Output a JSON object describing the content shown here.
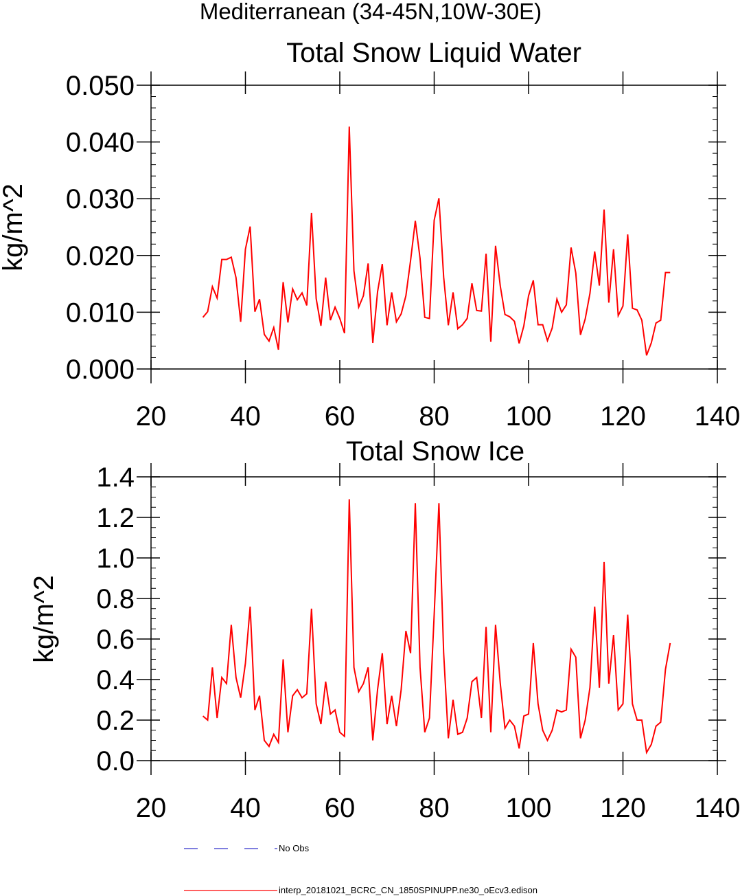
{
  "figure_title": "Mediterranean (34-45N,10W-30E)",
  "legend": [
    {
      "label": "No Obs",
      "color": "#3333cc",
      "dash": "dashed"
    },
    {
      "label": "interp_20181021_BCRC_CN_1850SPINUPP.ne30_oEcv3.edison",
      "color": "#ff0000",
      "dash": "solid"
    }
  ],
  "chart_data": [
    {
      "type": "line",
      "title": "Total Snow Liquid Water",
      "ylabel": "kg/m^2",
      "xlabel": "",
      "xlim": [
        20,
        140
      ],
      "ylim": [
        0,
        0.05
      ],
      "xticks": [
        20,
        40,
        60,
        80,
        100,
        120,
        140
      ],
      "xtick_labels": [
        "20",
        "40",
        "60",
        "80",
        "100",
        "120",
        "140"
      ],
      "yticks": [
        0,
        0.01,
        0.02,
        0.03,
        0.04,
        0.05
      ],
      "ytick_labels": [
        "0.000",
        "0.010",
        "0.020",
        "0.030",
        "0.040",
        "0.050"
      ],
      "y_minor_step": 0.002,
      "grid": false,
      "series": [
        {
          "color": "#ff0000",
          "x_start": 31,
          "x_step": 1,
          "values": [
            0.0091,
            0.0101,
            0.0145,
            0.0125,
            0.0193,
            0.0193,
            0.0197,
            0.0161,
            0.0083,
            0.0211,
            0.0251,
            0.0101,
            0.0123,
            0.0061,
            0.0049,
            0.0073,
            0.0034,
            0.0153,
            0.0082,
            0.0141,
            0.0122,
            0.0134,
            0.0112,
            0.0275,
            0.0124,
            0.0076,
            0.0161,
            0.0086,
            0.0109,
            0.0089,
            0.0063,
            0.0427,
            0.0173,
            0.0109,
            0.0129,
            0.0186,
            0.0046,
            0.0136,
            0.0185,
            0.0077,
            0.0135,
            0.0083,
            0.0097,
            0.0129,
            0.0191,
            0.0261,
            0.0195,
            0.0091,
            0.0089,
            0.0262,
            0.0301,
            0.0162,
            0.0077,
            0.0135,
            0.0071,
            0.0078,
            0.0089,
            0.0151,
            0.0103,
            0.0102,
            0.0203,
            0.0048,
            0.0217,
            0.0146,
            0.0096,
            0.0092,
            0.0084,
            0.0045,
            0.0076,
            0.0129,
            0.0156,
            0.0078,
            0.0078,
            0.005,
            0.0072,
            0.0123,
            0.01,
            0.0113,
            0.0214,
            0.0169,
            0.006,
            0.0088,
            0.0133,
            0.0207,
            0.0147,
            0.0281,
            0.0117,
            0.0211,
            0.0094,
            0.0111,
            0.0237,
            0.0107,
            0.0104,
            0.0086,
            0.0024,
            0.0046,
            0.0081,
            0.0086,
            0.017,
            0.017
          ]
        }
      ]
    },
    {
      "type": "line",
      "title": "Total Snow Ice",
      "ylabel": "kg/m^2",
      "xlabel": "",
      "xlim": [
        20,
        140
      ],
      "ylim": [
        0,
        1.4
      ],
      "xticks": [
        20,
        40,
        60,
        80,
        100,
        120,
        140
      ],
      "xtick_labels": [
        "20",
        "40",
        "60",
        "80",
        "100",
        "120",
        "140"
      ],
      "yticks": [
        0,
        0.2,
        0.4,
        0.6,
        0.8,
        1.0,
        1.2,
        1.4
      ],
      "ytick_labels": [
        "0.0",
        "0.2",
        "0.4",
        "0.6",
        "0.8",
        "1.0",
        "1.2",
        "1.4"
      ],
      "y_minor_step": 0.05,
      "grid": false,
      "series": [
        {
          "color": "#ff0000",
          "x_start": 31,
          "x_step": 1,
          "values": [
            0.22,
            0.2,
            0.46,
            0.21,
            0.41,
            0.38,
            0.67,
            0.41,
            0.31,
            0.48,
            0.76,
            0.25,
            0.32,
            0.1,
            0.07,
            0.13,
            0.09,
            0.5,
            0.14,
            0.32,
            0.35,
            0.31,
            0.33,
            0.75,
            0.28,
            0.18,
            0.39,
            0.23,
            0.25,
            0.14,
            0.12,
            1.29,
            0.46,
            0.34,
            0.38,
            0.46,
            0.1,
            0.35,
            0.53,
            0.18,
            0.32,
            0.17,
            0.35,
            0.64,
            0.53,
            1.27,
            0.46,
            0.14,
            0.21,
            0.72,
            1.27,
            0.53,
            0.11,
            0.3,
            0.13,
            0.14,
            0.21,
            0.39,
            0.41,
            0.21,
            0.66,
            0.14,
            0.67,
            0.38,
            0.16,
            0.2,
            0.17,
            0.06,
            0.22,
            0.23,
            0.58,
            0.28,
            0.15,
            0.1,
            0.15,
            0.25,
            0.24,
            0.25,
            0.55,
            0.51,
            0.11,
            0.2,
            0.36,
            0.76,
            0.36,
            0.98,
            0.38,
            0.62,
            0.25,
            0.28,
            0.72,
            0.28,
            0.2,
            0.2,
            0.04,
            0.08,
            0.17,
            0.19,
            0.45,
            0.58
          ]
        }
      ]
    }
  ]
}
